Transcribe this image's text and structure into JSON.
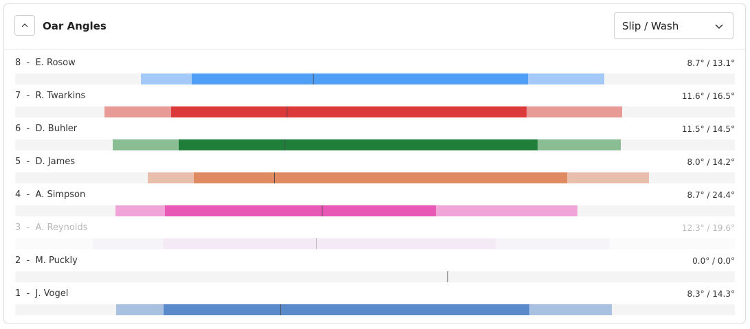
{
  "header": {
    "title": "Oar Angles",
    "dropdown": "Slip / Wash"
  },
  "rows": [
    {
      "seat": "8",
      "name": "E. Rosow",
      "slip_wash": "8.7° / 13.1°",
      "catch": 17.5,
      "slip_end": 24.5,
      "marker": 41.4,
      "wash_start": 71.3,
      "finish": 81.9,
      "color": "#4e9ff5",
      "light_color": "#a4c9f9",
      "dimmed": false
    },
    {
      "seat": "7",
      "name": "R. Twarkins",
      "slip_wash": "11.6° / 16.5°",
      "catch": 12.4,
      "slip_end": 21.7,
      "marker": 37.7,
      "wash_start": 71.1,
      "finish": 84.3,
      "color": "#dc3a3a",
      "light_color": "#e79a96",
      "dimmed": false
    },
    {
      "seat": "6",
      "name": "D. Buhler",
      "slip_wash": "11.5° / 14.5°",
      "catch": 13.6,
      "slip_end": 22.7,
      "marker": 37.4,
      "wash_start": 72.6,
      "finish": 84.1,
      "color": "#1f7e3a",
      "light_color": "#8bbd94",
      "dimmed": false
    },
    {
      "seat": "5",
      "name": "D. James",
      "slip_wash": "8.0° / 14.2°",
      "catch": 18.4,
      "slip_end": 24.8,
      "marker": 36.0,
      "wash_start": 76.7,
      "finish": 88.1,
      "color": "#e08a62",
      "light_color": "#e8bfad",
      "dimmed": false
    },
    {
      "seat": "4",
      "name": "A. Simpson",
      "slip_wash": "8.7° / 24.4°",
      "catch": 13.9,
      "slip_end": 20.8,
      "marker": 42.6,
      "wash_start": 58.5,
      "finish": 78.1,
      "color": "#e858b5",
      "light_color": "#f0a4d8",
      "dimmed": false
    },
    {
      "seat": "3",
      "name": "A. Reynolds",
      "slip_wash": "12.3° / 19.6°",
      "catch": 10.8,
      "slip_end": 20.6,
      "marker": 41.8,
      "wash_start": 66.8,
      "finish": 82.5,
      "color": "#dec6e6",
      "light_color": "#ebe0f0",
      "dimmed": true
    },
    {
      "seat": "2",
      "name": "M. Puckly",
      "slip_wash": "0.0° / 0.0°",
      "catch": null,
      "slip_end": null,
      "marker": 60.1,
      "wash_start": null,
      "finish": null,
      "color": "#5a8ac9",
      "light_color": "#a9c1e0",
      "dimmed": false
    },
    {
      "seat": "1",
      "name": "J. Vogel",
      "slip_wash": "8.3° / 14.3°",
      "catch": 14.0,
      "slip_end": 20.6,
      "marker": 36.9,
      "wash_start": 71.4,
      "finish": 82.9,
      "color": "#5a8ac9",
      "light_color": "#a9c1e0",
      "dimmed": false
    }
  ]
}
